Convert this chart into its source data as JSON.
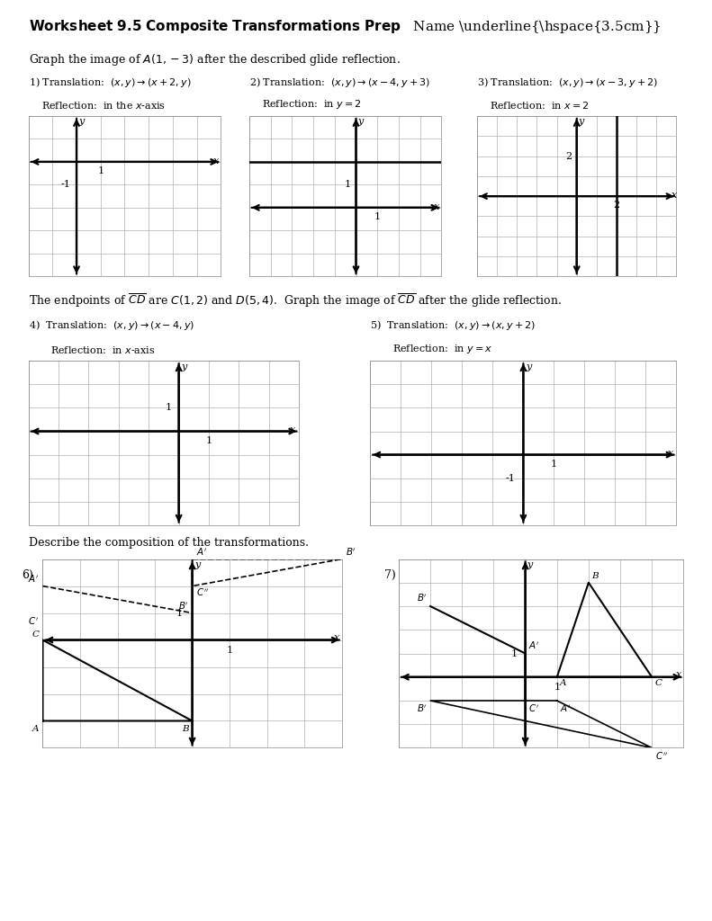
{
  "bg": "#ffffff",
  "title_bold": "Worksheet 9.5 Composite Transformations Prep",
  "title_name": "Name _________________",
  "instr1": "Graph the image of $A(1,-3)$ after the described glide reflection.",
  "instr2": "The endpoints of $\\overline{CD}$ are $C(1,2)$ and $D(5,4)$.  Graph the image of $\\overline{CD}$ after the glide reflection.",
  "instr3": "Describe the composition of the transformations.",
  "p1_trans": "1) Translation:  $(x, y)\\rightarrow(x+2, y)$",
  "p1_refl": "    Reflection:  in the $x$-axis",
  "p2_trans": "2) Translation:  $(x, y)\\rightarrow(x-4, y+3)$",
  "p2_refl": "    Reflection:  in $y=2$",
  "p3_trans": "3) Translation:  $(x, y)\\rightarrow(x-3, y+2)$",
  "p3_refl": "    Reflection:  in $x=2$",
  "p4_trans": "4)  Translation:  $(x, y)\\rightarrow(x-4, y)$",
  "p4_refl": "     Reflection:  in $x$-axis",
  "p5_trans": "5)  Translation:  $(x, y)\\rightarrow(x, y+2)$",
  "p5_refl": "     Reflection:  in $y=x$",
  "grid_color": "#b0b0b0",
  "axis_lw": 1.6,
  "grid_lw": 0.5
}
